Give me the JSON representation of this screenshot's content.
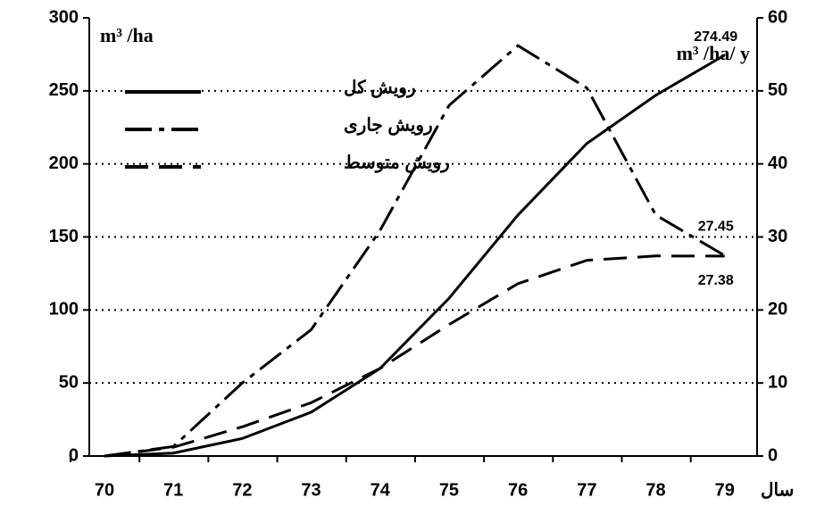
{
  "chart_data": {
    "type": "line",
    "x": [
      70,
      71,
      72,
      73,
      74,
      75,
      76,
      77,
      78,
      79
    ],
    "xlim": [
      69.78,
      79.47
    ],
    "xticks": [
      70,
      71,
      72,
      73,
      74,
      75,
      76,
      77,
      78,
      79
    ],
    "x_label": "سال",
    "ylim": [
      0,
      300
    ],
    "yticks": [
      0,
      50,
      100,
      150,
      200,
      250,
      300
    ],
    "y_label": "m³ /ha",
    "y2lim": [
      0,
      60
    ],
    "y2ticks": [
      0,
      10,
      20,
      30,
      40,
      50,
      60
    ],
    "y2_label": "m³ /ha/ y",
    "grid": true,
    "legend": "upper left",
    "series": [
      {
        "name": "رویش کل",
        "color": "#000000",
        "dash": "solid",
        "label_last": true,
        "values": [
          0,
          2,
          12,
          30,
          60,
          108,
          165,
          214,
          247,
          274.49
        ]
      },
      {
        "name": "رویش جاری",
        "color": "#000000",
        "dash": "dashdot",
        "axis": "y2",
        "label_last": true,
        "values": [
          0,
          1.3,
          10,
          17.3,
          30.9,
          48,
          56.2,
          50.4,
          33,
          27.45
        ]
      },
      {
        "name": "رویش متوسط",
        "color": "#000000",
        "dash": "dash",
        "axis": "y2",
        "label_last": true,
        "values": [
          0,
          1.2,
          4,
          7.3,
          12,
          18,
          23.6,
          26.8,
          27.4,
          27.38
        ]
      }
    ]
  }
}
